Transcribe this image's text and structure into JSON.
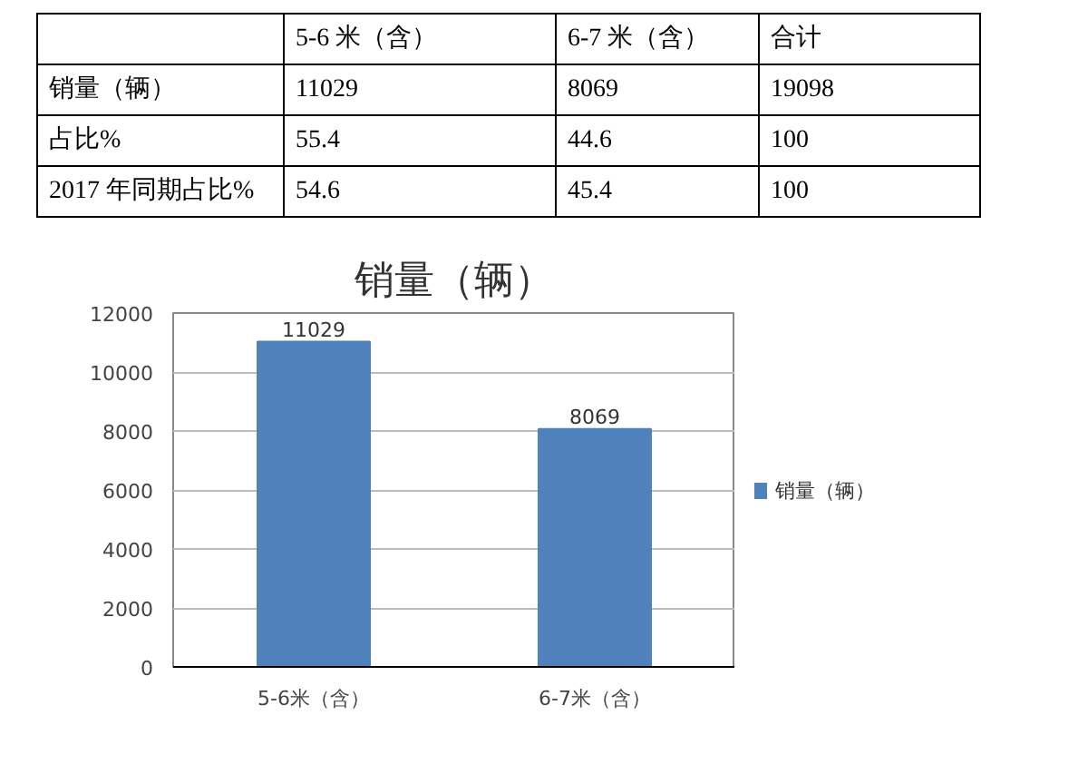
{
  "chart_data": {
    "type": "bar",
    "title": "销量（辆）",
    "categories": [
      "5-6米（含）",
      "6-7米（含）"
    ],
    "series": [
      {
        "name": "销量（辆）",
        "color": "#4f81bd",
        "values": [
          11029,
          8069
        ]
      }
    ],
    "ylim": [
      0,
      12000
    ],
    "yticks": [
      0,
      2000,
      4000,
      6000,
      8000,
      10000,
      12000
    ],
    "grid": "y",
    "legend": "right",
    "data_labels": true,
    "annotations": [
      "5-6 米（含）",
      "6-7 米（含）",
      "合计",
      "销量（辆）",
      "11029",
      "8069",
      "19098",
      "占比%",
      "55.4",
      "44.6",
      "100",
      "2017 年同期占比%",
      "54.6",
      "45.4",
      "100"
    ]
  }
}
